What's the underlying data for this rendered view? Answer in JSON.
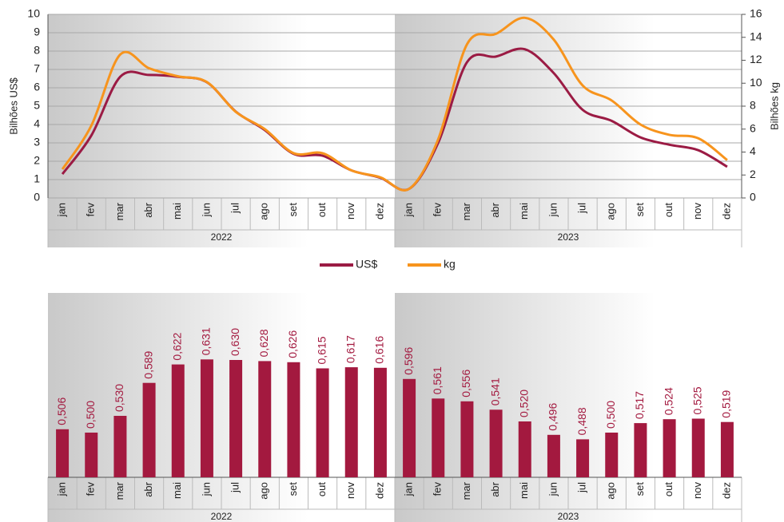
{
  "chart_data": [
    {
      "type": "line",
      "categories": [
        "jan",
        "fev",
        "mar",
        "abr",
        "mai",
        "jun",
        "jul",
        "ago",
        "set",
        "out",
        "nov",
        "dez",
        "jan",
        "fev",
        "mar",
        "abr",
        "mai",
        "jun",
        "jul",
        "ago",
        "set",
        "out",
        "nov",
        "dez"
      ],
      "groups": [
        "2022",
        "2023"
      ],
      "y_label": "Bilhões US$",
      "y2_label": "Bilhões kg",
      "ylim": [
        0,
        10
      ],
      "yticks": [
        0,
        1,
        2,
        3,
        4,
        5,
        6,
        7,
        8,
        9,
        10
      ],
      "y2lim": [
        0,
        16
      ],
      "y2ticks": [
        0,
        2,
        4,
        6,
        8,
        10,
        12,
        14,
        16
      ],
      "grid": true,
      "legend": "bottom",
      "series": [
        {
          "name": "US$",
          "color": "#9b1b44",
          "values": [
            1.3,
            3.4,
            6.6,
            6.7,
            6.6,
            6.3,
            4.7,
            3.7,
            2.4,
            2.3,
            1.5,
            1.1,
            0.5,
            3.0,
            7.4,
            7.7,
            8.1,
            6.8,
            4.8,
            4.2,
            3.3,
            2.9,
            2.6,
            1.7
          ]
        },
        {
          "name": "kg",
          "color": "#f7941d",
          "axis": "y2",
          "values": [
            2.5,
            6.3,
            12.5,
            11.3,
            10.6,
            10.1,
            7.5,
            6.0,
            3.9,
            3.9,
            2.4,
            1.8,
            0.8,
            5.1,
            13.4,
            14.3,
            15.7,
            13.8,
            9.8,
            8.5,
            6.4,
            5.5,
            5.2,
            3.3
          ]
        }
      ]
    },
    {
      "type": "bar",
      "categories": [
        "jan",
        "fev",
        "mar",
        "abr",
        "mai",
        "jun",
        "jul",
        "ago",
        "set",
        "out",
        "nov",
        "dez",
        "jan",
        "fev",
        "mar",
        "abr",
        "mai",
        "jun",
        "jul",
        "ago",
        "set",
        "out",
        "nov",
        "dez"
      ],
      "groups": [
        "2022",
        "2023"
      ],
      "ylim": [
        0.42,
        0.66
      ],
      "color": "#a3193f",
      "values": [
        0.506,
        0.5,
        0.53,
        0.589,
        0.622,
        0.631,
        0.63,
        0.628,
        0.626,
        0.615,
        0.617,
        0.616,
        0.596,
        0.561,
        0.556,
        0.541,
        0.52,
        0.496,
        0.488,
        0.5,
        0.517,
        0.524,
        0.525,
        0.519
      ],
      "value_labels": [
        "0,506",
        "0,500",
        "0,530",
        "0,589",
        "0,622",
        "0,631",
        "0,630",
        "0,628",
        "0,626",
        "0,615",
        "0,617",
        "0,616",
        "0,596",
        "0,561",
        "0,556",
        "0,541",
        "0,520",
        "0,496",
        "0,488",
        "0,500",
        "0,517",
        "0,524",
        "0,525",
        "0,519"
      ]
    }
  ]
}
